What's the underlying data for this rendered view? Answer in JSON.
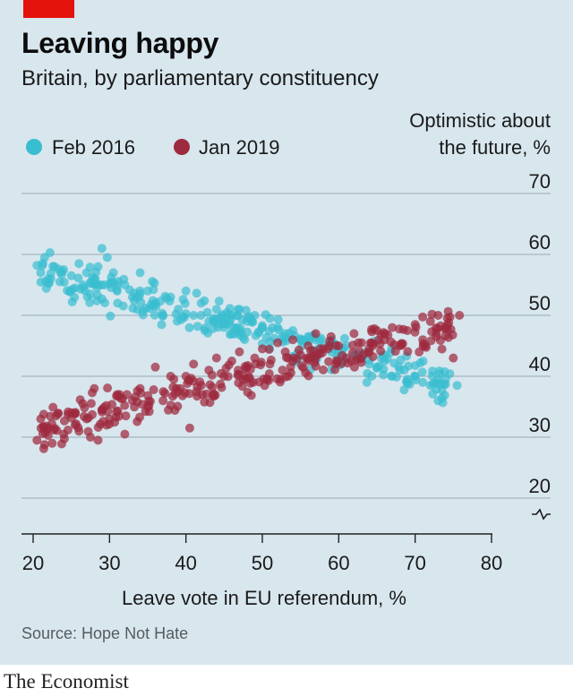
{
  "header": {
    "title": "Leaving happy",
    "subtitle": "Britain, by parliamentary constituency"
  },
  "source": "Source: Hope Not Hate",
  "brand": "The Economist",
  "colors": {
    "background": "#d8e6ee",
    "accent_red": "#e3120b",
    "series_2016": "#39bdd0",
    "series_2019": "#9e2a3f",
    "grid": "#9aa9b1"
  },
  "chart_data": {
    "type": "scatter",
    "title": "Leaving happy",
    "subtitle": "Britain, by parliamentary constituency",
    "xlabel": "Leave vote in EU referendum, %",
    "ylabel_line1": "Optimistic about",
    "ylabel_line2": "the future, %",
    "xlim": [
      20,
      80
    ],
    "ylim": [
      20,
      70
    ],
    "y_axis_break": true,
    "xticks": [
      20,
      30,
      40,
      50,
      60,
      70,
      80
    ],
    "yticks": [
      20,
      30,
      40,
      50,
      60,
      70
    ],
    "grid": "horizontal",
    "legend_position": "top-left",
    "series": [
      {
        "name": "Feb 2016",
        "color": "#39bdd0",
        "trend": {
          "x": [
            20,
            76
          ],
          "y": [
            57.5,
            38.5
          ]
        },
        "points": [
          [
            20.5,
            58.2
          ],
          [
            21,
            57
          ],
          [
            21.5,
            59.5
          ],
          [
            22,
            56
          ],
          [
            22.2,
            60.3
          ],
          [
            22.8,
            58
          ],
          [
            23.5,
            55.5
          ],
          [
            24,
            57.5
          ],
          [
            25,
            56.5
          ],
          [
            25.5,
            54.5
          ],
          [
            26,
            58.5
          ],
          [
            26.5,
            55
          ],
          [
            27,
            57
          ],
          [
            27.5,
            53.5
          ],
          [
            28,
            56
          ],
          [
            28.5,
            58
          ],
          [
            29,
            61
          ],
          [
            29.3,
            55
          ],
          [
            29.7,
            59.5
          ],
          [
            30.5,
            57
          ],
          [
            31,
            54
          ],
          [
            32,
            55
          ],
          [
            33,
            53
          ],
          [
            34,
            57
          ],
          [
            35,
            54
          ],
          [
            36,
            52
          ],
          [
            37,
            50
          ],
          [
            38,
            53
          ],
          [
            39,
            51
          ],
          [
            40,
            54
          ],
          [
            41,
            50
          ],
          [
            42,
            52
          ],
          [
            43,
            49
          ],
          [
            44,
            51
          ],
          [
            45,
            48
          ],
          [
            46,
            50
          ],
          [
            47,
            51
          ],
          [
            48,
            49
          ],
          [
            49,
            50
          ],
          [
            50,
            48
          ],
          [
            51,
            49.5
          ],
          [
            52,
            48
          ],
          [
            53,
            47
          ],
          [
            54,
            47.5
          ],
          [
            55,
            46
          ],
          [
            56,
            46.5
          ],
          [
            57,
            46
          ],
          [
            58,
            45
          ],
          [
            59,
            45.5
          ],
          [
            60,
            44
          ],
          [
            61,
            45
          ],
          [
            62,
            43.5
          ],
          [
            63,
            43
          ],
          [
            64,
            42
          ],
          [
            65,
            41.5
          ],
          [
            66,
            42.5
          ],
          [
            67,
            40
          ],
          [
            68,
            41
          ],
          [
            69,
            39.5
          ],
          [
            70,
            40
          ],
          [
            71,
            39
          ],
          [
            72,
            38.5
          ],
          [
            73,
            36
          ],
          [
            74,
            39.5
          ],
          [
            75.5,
            38.5
          ]
        ]
      },
      {
        "name": "Jan 2019",
        "color": "#9e2a3f",
        "trend": {
          "x": [
            20,
            76
          ],
          "y": [
            31.5,
            48.5
          ]
        },
        "points": [
          [
            20.5,
            29.5
          ],
          [
            21,
            33
          ],
          [
            21.5,
            28.8
          ],
          [
            22,
            31.5
          ],
          [
            22.5,
            29
          ],
          [
            23,
            33.5
          ],
          [
            24,
            30.5
          ],
          [
            25,
            34
          ],
          [
            25.5,
            32
          ],
          [
            26,
            31
          ],
          [
            26.5,
            35.5
          ],
          [
            27,
            33
          ],
          [
            27.5,
            30
          ],
          [
            28,
            38
          ],
          [
            28.5,
            29.5
          ],
          [
            29,
            34.5
          ],
          [
            30,
            33
          ],
          [
            31,
            37
          ],
          [
            32,
            30.5
          ],
          [
            33,
            36
          ],
          [
            34,
            38
          ],
          [
            35,
            35
          ],
          [
            36,
            41.5
          ],
          [
            37,
            36
          ],
          [
            38,
            40
          ],
          [
            39,
            37.5
          ],
          [
            40,
            40
          ],
          [
            40.5,
            31.5
          ],
          [
            41,
            42
          ],
          [
            42,
            38.5
          ],
          [
            43,
            41
          ],
          [
            44,
            43
          ],
          [
            45,
            40
          ],
          [
            46,
            42.5
          ],
          [
            47,
            44
          ],
          [
            48,
            41.5
          ],
          [
            49,
            43
          ],
          [
            50,
            44.5
          ],
          [
            51,
            42
          ],
          [
            52,
            45.5
          ],
          [
            53,
            44
          ],
          [
            54,
            46
          ],
          [
            55,
            43.5
          ],
          [
            56,
            45
          ],
          [
            57,
            47
          ],
          [
            58,
            44.5
          ],
          [
            59,
            46.5
          ],
          [
            60,
            45
          ],
          [
            61,
            43
          ],
          [
            62,
            47
          ],
          [
            63,
            45.5
          ],
          [
            64,
            44
          ],
          [
            65,
            47.5
          ],
          [
            66,
            46
          ],
          [
            67,
            48
          ],
          [
            68,
            45
          ],
          [
            69,
            47.5
          ],
          [
            70,
            48.5
          ],
          [
            71,
            46
          ],
          [
            72,
            49
          ],
          [
            73,
            50
          ],
          [
            74,
            48
          ],
          [
            75,
            43
          ],
          [
            75.8,
            50
          ]
        ]
      }
    ]
  }
}
